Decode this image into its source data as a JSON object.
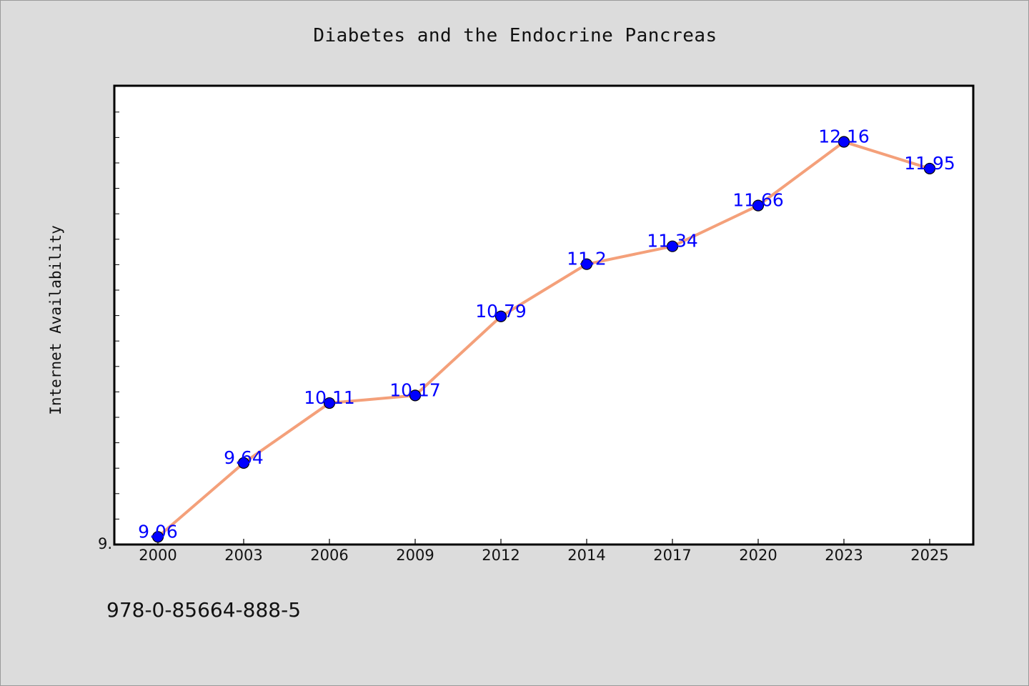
{
  "chart_data": {
    "type": "line",
    "title": "Diabetes and the Endocrine Pancreas",
    "xlabel": "",
    "ylabel": "Internet Availability",
    "categories": [
      "2000",
      "2003",
      "2006",
      "2009",
      "2012",
      "2014",
      "2017",
      "2020",
      "2023",
      "2025"
    ],
    "series": [
      {
        "values": [
          9.06,
          9.64,
          10.11,
          10.17,
          10.79,
          11.2,
          11.34,
          11.66,
          12.16,
          11.95
        ],
        "labels": [
          "9.06",
          "9.64",
          "10.11",
          "10.17",
          "10.79",
          "11.2",
          "11.34",
          "11.66",
          "12.16",
          "11.95"
        ],
        "line_color": "#f4a07a",
        "marker_color": "#0000ff"
      }
    ],
    "ylim": [
      9.0,
      12.6
    ],
    "y_tick_label": "9.",
    "grid": false,
    "legend": "none",
    "plot_background": "#ffffff",
    "figure_background": "#dcdcdc"
  },
  "footer": {
    "text": "978-0-85664-888-5"
  }
}
